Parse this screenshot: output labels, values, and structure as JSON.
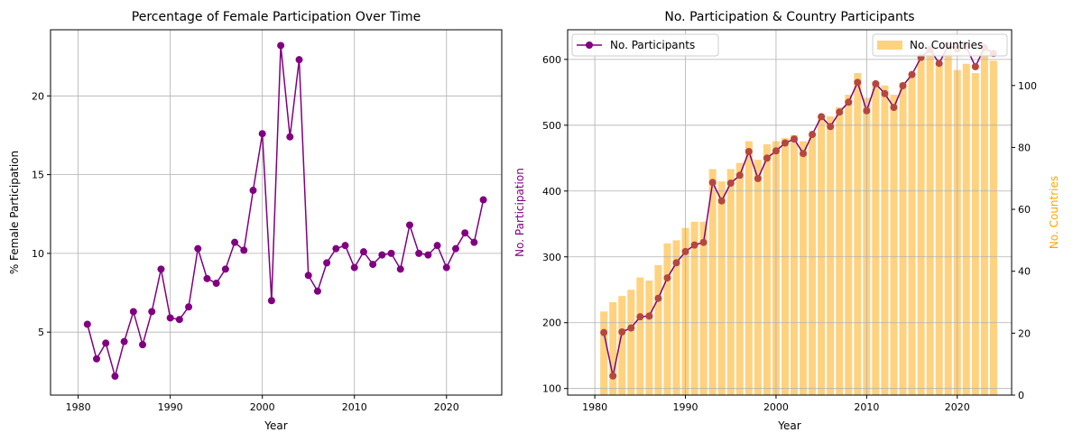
{
  "chart_data": [
    {
      "type": "line",
      "title": "Percentage of Female Participation Over Time",
      "xlabel": "Year",
      "ylabel": "% Female Participation",
      "xlim": [
        1977,
        2026
      ],
      "ylim": [
        1.0,
        24.2
      ],
      "xticks": [
        1980,
        1990,
        2000,
        2010,
        2020
      ],
      "yticks": [
        5,
        10,
        15,
        20
      ],
      "grid": true,
      "line_color": "#800080",
      "x": [
        1981,
        1982,
        1983,
        1984,
        1985,
        1986,
        1987,
        1988,
        1989,
        1990,
        1991,
        1992,
        1993,
        1994,
        1995,
        1996,
        1997,
        1998,
        1999,
        2000,
        2001,
        2002,
        2003,
        2004,
        2005,
        2006,
        2007,
        2008,
        2009,
        2010,
        2011,
        2012,
        2013,
        2014,
        2015,
        2016,
        2017,
        2018,
        2019,
        2020,
        2021,
        2022,
        2023,
        2024
      ],
      "values": [
        5.5,
        3.3,
        4.3,
        2.2,
        4.4,
        6.3,
        4.2,
        6.3,
        9.0,
        5.9,
        5.8,
        6.6,
        10.3,
        8.4,
        8.1,
        9.0,
        10.7,
        10.2,
        14.0,
        17.6,
        7.0,
        23.2,
        17.4,
        22.3,
        8.6,
        7.6,
        9.4,
        10.3,
        10.5,
        9.1,
        10.1,
        9.3,
        9.9,
        10.0,
        9.0,
        11.8,
        10.0,
        9.9,
        10.5,
        9.1,
        10.3,
        11.3,
        10.7,
        13.4
      ]
    },
    {
      "type": "bar+line",
      "title": "No. Participation & Country Participants",
      "xlabel": "Year",
      "ylabel_left": "No. Participation",
      "ylabel_right": "No. Countries",
      "ylabel_left_color": "#800080",
      "ylabel_right_color": "#FFA500",
      "xlim": [
        1977,
        2026
      ],
      "ylim_left": [
        90,
        645
      ],
      "ylim_right": [
        0,
        118
      ],
      "xticks": [
        1980,
        1990,
        2000,
        2010,
        2020
      ],
      "yticks_left": [
        100,
        200,
        300,
        400,
        500,
        600
      ],
      "yticks_right": [
        0,
        20,
        40,
        60,
        80,
        100
      ],
      "grid": true,
      "legend_left": {
        "label": "No. Participants",
        "position": "upper-left"
      },
      "legend_right": {
        "label": "No. Countries",
        "position": "upper-right"
      },
      "line_color": "#800080",
      "bar_color": "#FFA500",
      "x": [
        1981,
        1982,
        1983,
        1984,
        1985,
        1986,
        1987,
        1988,
        1989,
        1990,
        1991,
        1992,
        1993,
        1994,
        1995,
        1996,
        1997,
        1998,
        1999,
        2000,
        2001,
        2002,
        2003,
        2004,
        2005,
        2006,
        2007,
        2008,
        2009,
        2010,
        2011,
        2012,
        2013,
        2014,
        2015,
        2016,
        2017,
        2018,
        2019,
        2020,
        2021,
        2022,
        2023,
        2024
      ],
      "participants": [
        185,
        119,
        186,
        192,
        209,
        210,
        237,
        268,
        291,
        308,
        318,
        322,
        413,
        385,
        412,
        424,
        460,
        419,
        450,
        461,
        473,
        479,
        457,
        486,
        513,
        498,
        520,
        535,
        565,
        522,
        563,
        548,
        527,
        560,
        577,
        603,
        615,
        594,
        621,
        616,
        619,
        589,
        618,
        609
      ],
      "countries": [
        27,
        30,
        32,
        34,
        38,
        37,
        42,
        49,
        50,
        54,
        56,
        56,
        73,
        69,
        73,
        75,
        82,
        76,
        81,
        82,
        83,
        84,
        82,
        84,
        90,
        90,
        93,
        97,
        104,
        96,
        101,
        100,
        97,
        101,
        104,
        109,
        111,
        107,
        112,
        105,
        107,
        104,
        112,
        108
      ]
    }
  ]
}
